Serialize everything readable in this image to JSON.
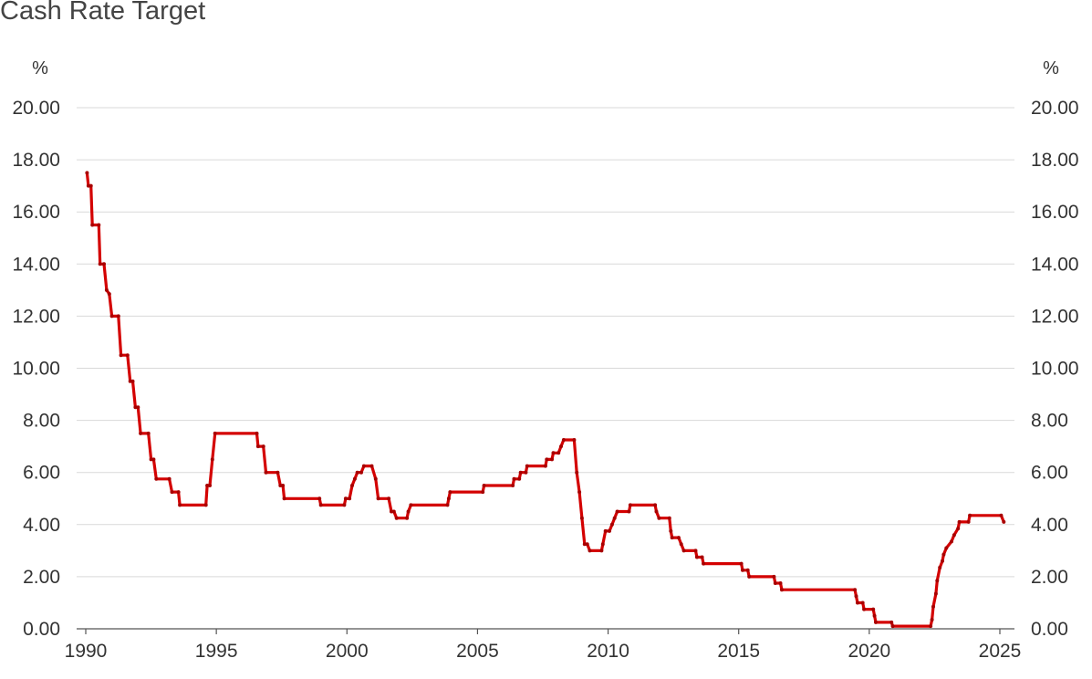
{
  "chart_data": {
    "type": "line",
    "title": "Cash Rate Target",
    "y_unit_left": "%",
    "y_unit_right": "%",
    "ylim": [
      0,
      20
    ],
    "xlim": [
      1990,
      2025.2
    ],
    "y_ticks": [
      "0.00",
      "2.00",
      "4.00",
      "6.00",
      "8.00",
      "10.00",
      "12.00",
      "14.00",
      "16.00",
      "18.00",
      "20.00"
    ],
    "x_ticks": [
      "1990",
      "1995",
      "2000",
      "2005",
      "2010",
      "2015",
      "2020",
      "2025"
    ],
    "grid": true,
    "line_color": "#d40000",
    "series": [
      {
        "points": [
          [
            1990.05,
            17.5
          ],
          [
            1990.1,
            17.0
          ],
          [
            1990.2,
            17.0
          ],
          [
            1990.25,
            15.5
          ],
          [
            1990.5,
            15.5
          ],
          [
            1990.55,
            14.0
          ],
          [
            1990.7,
            14.0
          ],
          [
            1990.8,
            13.0
          ],
          [
            1990.9,
            12.85
          ],
          [
            1991.0,
            12.0
          ],
          [
            1991.25,
            12.0
          ],
          [
            1991.35,
            10.5
          ],
          [
            1991.6,
            10.5
          ],
          [
            1991.7,
            9.5
          ],
          [
            1991.8,
            9.5
          ],
          [
            1991.9,
            8.5
          ],
          [
            1992.0,
            8.5
          ],
          [
            1992.1,
            7.5
          ],
          [
            1992.4,
            7.5
          ],
          [
            1992.5,
            6.5
          ],
          [
            1992.6,
            6.5
          ],
          [
            1992.7,
            5.75
          ],
          [
            1993.2,
            5.75
          ],
          [
            1993.3,
            5.25
          ],
          [
            1993.55,
            5.25
          ],
          [
            1993.6,
            4.75
          ],
          [
            1994.6,
            4.75
          ],
          [
            1994.65,
            5.5
          ],
          [
            1994.75,
            5.5
          ],
          [
            1994.85,
            6.5
          ],
          [
            1994.95,
            7.5
          ],
          [
            1996.55,
            7.5
          ],
          [
            1996.6,
            7.0
          ],
          [
            1996.8,
            7.0
          ],
          [
            1996.9,
            6.0
          ],
          [
            1997.35,
            6.0
          ],
          [
            1997.45,
            5.5
          ],
          [
            1997.55,
            5.5
          ],
          [
            1997.6,
            5.0
          ],
          [
            1998.95,
            5.0
          ],
          [
            1999.0,
            4.75
          ],
          [
            1999.9,
            4.75
          ],
          [
            1999.95,
            5.0
          ],
          [
            2000.1,
            5.0
          ],
          [
            2000.2,
            5.5
          ],
          [
            2000.3,
            5.75
          ],
          [
            2000.4,
            6.0
          ],
          [
            2000.55,
            6.0
          ],
          [
            2000.65,
            6.25
          ],
          [
            2000.95,
            6.25
          ],
          [
            2001.1,
            5.75
          ],
          [
            2001.2,
            5.0
          ],
          [
            2001.6,
            5.0
          ],
          [
            2001.7,
            4.5
          ],
          [
            2001.8,
            4.5
          ],
          [
            2001.9,
            4.25
          ],
          [
            2002.3,
            4.25
          ],
          [
            2002.35,
            4.5
          ],
          [
            2002.45,
            4.75
          ],
          [
            2003.85,
            4.75
          ],
          [
            2003.9,
            5.0
          ],
          [
            2003.95,
            5.25
          ],
          [
            2005.2,
            5.25
          ],
          [
            2005.25,
            5.5
          ],
          [
            2006.35,
            5.5
          ],
          [
            2006.4,
            5.75
          ],
          [
            2006.6,
            5.75
          ],
          [
            2006.65,
            6.0
          ],
          [
            2006.85,
            6.0
          ],
          [
            2006.9,
            6.25
          ],
          [
            2007.6,
            6.25
          ],
          [
            2007.65,
            6.5
          ],
          [
            2007.85,
            6.5
          ],
          [
            2007.9,
            6.75
          ],
          [
            2008.1,
            6.75
          ],
          [
            2008.2,
            7.0
          ],
          [
            2008.3,
            7.25
          ],
          [
            2008.7,
            7.25
          ],
          [
            2008.8,
            6.0
          ],
          [
            2008.9,
            5.25
          ],
          [
            2009.0,
            4.25
          ],
          [
            2009.1,
            3.25
          ],
          [
            2009.2,
            3.25
          ],
          [
            2009.3,
            3.0
          ],
          [
            2009.75,
            3.0
          ],
          [
            2009.8,
            3.25
          ],
          [
            2009.9,
            3.75
          ],
          [
            2010.05,
            3.75
          ],
          [
            2010.15,
            4.0
          ],
          [
            2010.25,
            4.25
          ],
          [
            2010.35,
            4.5
          ],
          [
            2010.8,
            4.5
          ],
          [
            2010.85,
            4.75
          ],
          [
            2011.8,
            4.75
          ],
          [
            2011.85,
            4.5
          ],
          [
            2011.95,
            4.25
          ],
          [
            2012.35,
            4.25
          ],
          [
            2012.4,
            3.75
          ],
          [
            2012.45,
            3.5
          ],
          [
            2012.7,
            3.5
          ],
          [
            2012.8,
            3.25
          ],
          [
            2012.9,
            3.0
          ],
          [
            2013.35,
            3.0
          ],
          [
            2013.4,
            2.75
          ],
          [
            2013.6,
            2.75
          ],
          [
            2013.65,
            2.5
          ],
          [
            2015.1,
            2.5
          ],
          [
            2015.15,
            2.25
          ],
          [
            2015.35,
            2.25
          ],
          [
            2015.4,
            2.0
          ],
          [
            2016.35,
            2.0
          ],
          [
            2016.4,
            1.75
          ],
          [
            2016.6,
            1.75
          ],
          [
            2016.65,
            1.5
          ],
          [
            2019.45,
            1.5
          ],
          [
            2019.5,
            1.25
          ],
          [
            2019.55,
            1.0
          ],
          [
            2019.75,
            1.0
          ],
          [
            2019.8,
            0.75
          ],
          [
            2020.15,
            0.75
          ],
          [
            2020.2,
            0.5
          ],
          [
            2020.25,
            0.25
          ],
          [
            2020.85,
            0.25
          ],
          [
            2020.9,
            0.1
          ],
          [
            2022.35,
            0.1
          ],
          [
            2022.4,
            0.35
          ],
          [
            2022.45,
            0.85
          ],
          [
            2022.55,
            1.35
          ],
          [
            2022.6,
            1.85
          ],
          [
            2022.7,
            2.35
          ],
          [
            2022.8,
            2.6
          ],
          [
            2022.85,
            2.85
          ],
          [
            2022.95,
            3.1
          ],
          [
            2023.15,
            3.35
          ],
          [
            2023.25,
            3.6
          ],
          [
            2023.4,
            3.85
          ],
          [
            2023.45,
            4.1
          ],
          [
            2023.8,
            4.1
          ],
          [
            2023.85,
            4.35
          ],
          [
            2025.05,
            4.35
          ],
          [
            2025.15,
            4.1
          ]
        ]
      }
    ]
  }
}
